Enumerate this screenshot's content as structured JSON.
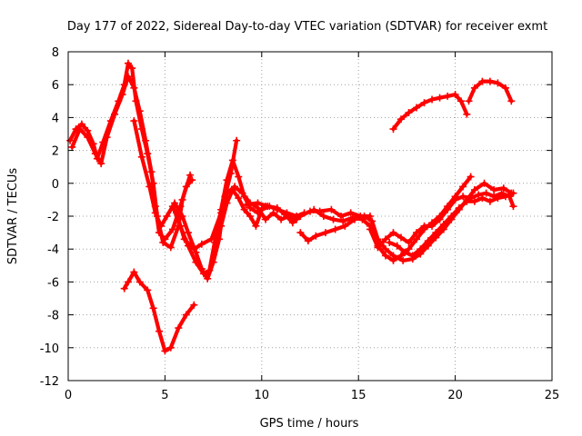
{
  "chart_data": {
    "type": "scatter",
    "title": "Day 177 of 2022, Sidereal Day-to-day VTEC variation (SDTVAR) for receiver exmt",
    "xlabel": "GPS time / hours",
    "ylabel": "SDTVAR / TECUs",
    "xlim": [
      0,
      25
    ],
    "ylim": [
      -12,
      8
    ],
    "xticks": [
      "0",
      "5",
      "10",
      "15",
      "20",
      "25"
    ],
    "yticks": [
      "8",
      "6",
      "4",
      "2",
      "0",
      "-2",
      "-4",
      "-6",
      "-8",
      "-10",
      "-12"
    ],
    "grid": true,
    "marker": "plus",
    "color": "#ff0000",
    "series": [
      {
        "name": "main",
        "points": [
          [
            0.1,
            2.6
          ],
          [
            0.4,
            3.3
          ],
          [
            0.7,
            3.6
          ],
          [
            1.0,
            3.2
          ],
          [
            1.3,
            2.4
          ],
          [
            1.5,
            1.5
          ],
          [
            1.8,
            2.5
          ],
          [
            2.2,
            3.8
          ],
          [
            2.6,
            5.0
          ],
          [
            2.9,
            6.0
          ],
          [
            3.1,
            7.3
          ],
          [
            3.3,
            7.0
          ],
          [
            3.5,
            5.0
          ],
          [
            3.8,
            3.3
          ],
          [
            4.1,
            1.8
          ],
          [
            4.4,
            0.0
          ],
          [
            4.6,
            -2.0
          ],
          [
            4.9,
            -3.6
          ],
          [
            5.3,
            -3.9
          ],
          [
            5.7,
            -2.6
          ],
          [
            5.9,
            -1.0
          ],
          [
            6.3,
            0.5
          ]
        ]
      },
      {
        "name": "main-b",
        "points": [
          [
            0.2,
            2.2
          ],
          [
            0.6,
            3.3
          ],
          [
            1.0,
            2.8
          ],
          [
            1.4,
            1.8
          ],
          [
            1.7,
            1.2
          ],
          [
            2.0,
            2.8
          ],
          [
            2.4,
            4.2
          ],
          [
            2.8,
            5.4
          ],
          [
            3.1,
            6.5
          ],
          [
            3.4,
            5.8
          ],
          [
            3.7,
            4.4
          ],
          [
            4.0,
            2.6
          ],
          [
            4.3,
            0.7
          ],
          [
            4.5,
            -1.4
          ],
          [
            4.7,
            -3.0
          ],
          [
            5.0,
            -3.4
          ],
          [
            5.4,
            -2.8
          ],
          [
            5.8,
            -1.4
          ],
          [
            6.1,
            -0.2
          ],
          [
            6.4,
            0.2
          ]
        ]
      },
      {
        "name": "main-c",
        "points": [
          [
            3.4,
            3.8
          ],
          [
            3.8,
            1.6
          ],
          [
            4.2,
            -0.2
          ],
          [
            4.5,
            -1.8
          ],
          [
            4.8,
            -2.6
          ],
          [
            5.1,
            -2.0
          ],
          [
            5.5,
            -1.2
          ],
          [
            5.9,
            -2.0
          ],
          [
            6.2,
            -3.0
          ],
          [
            6.6,
            -4.2
          ],
          [
            6.9,
            -5.2
          ],
          [
            7.2,
            -5.8
          ],
          [
            7.5,
            -4.8
          ],
          [
            7.8,
            -3.4
          ],
          [
            8.1,
            -0.8
          ],
          [
            8.4,
            0.6
          ],
          [
            8.7,
            2.6
          ]
        ]
      },
      {
        "name": "main-d",
        "points": [
          [
            5.4,
            -1.4
          ],
          [
            5.8,
            -2.6
          ],
          [
            6.2,
            -3.8
          ],
          [
            6.6,
            -4.8
          ],
          [
            7.0,
            -5.5
          ],
          [
            7.3,
            -5.3
          ],
          [
            7.6,
            -3.4
          ],
          [
            7.9,
            -1.6
          ],
          [
            8.2,
            0.2
          ],
          [
            8.5,
            1.4
          ],
          [
            8.8,
            0.4
          ],
          [
            9.1,
            -0.8
          ],
          [
            9.4,
            -1.5
          ],
          [
            9.8,
            -1.8
          ],
          [
            10.2,
            -1.4
          ]
        ]
      },
      {
        "name": "main-e",
        "points": [
          [
            5.6,
            -1.8
          ],
          [
            6.0,
            -3.4
          ],
          [
            6.5,
            -4.0
          ],
          [
            6.9,
            -3.7
          ],
          [
            7.4,
            -3.4
          ],
          [
            7.9,
            -1.8
          ],
          [
            8.2,
            -0.6
          ],
          [
            8.6,
            -0.2
          ],
          [
            9.0,
            -0.6
          ],
          [
            9.4,
            -1.2
          ],
          [
            9.8,
            -1.5
          ],
          [
            10.2,
            -2.2
          ],
          [
            10.6,
            -1.8
          ],
          [
            11.0,
            -2.2
          ],
          [
            11.4,
            -2.0
          ],
          [
            11.8,
            -2.2
          ]
        ]
      },
      {
        "name": "main-f",
        "points": [
          [
            7.6,
            -3.6
          ],
          [
            7.9,
            -2.6
          ],
          [
            8.2,
            -1.2
          ],
          [
            8.5,
            -0.4
          ],
          [
            8.8,
            -0.9
          ],
          [
            9.1,
            -1.6
          ],
          [
            9.4,
            -2.0
          ],
          [
            9.7,
            -2.6
          ],
          [
            10.0,
            -1.6
          ],
          [
            10.4,
            -1.4
          ],
          [
            10.8,
            -1.6
          ],
          [
            11.3,
            -1.8
          ],
          [
            11.8,
            -2.0
          ],
          [
            12.2,
            -1.8
          ]
        ]
      },
      {
        "name": "mid-a",
        "points": [
          [
            9.2,
            -1.3
          ],
          [
            9.8,
            -1.2
          ],
          [
            10.3,
            -1.4
          ],
          [
            10.8,
            -1.5
          ],
          [
            11.2,
            -1.9
          ],
          [
            11.6,
            -2.4
          ],
          [
            12.0,
            -2.0
          ],
          [
            12.5,
            -1.7
          ],
          [
            13.0,
            -1.7
          ],
          [
            13.6,
            -1.6
          ],
          [
            14.1,
            -2.0
          ],
          [
            14.6,
            -1.8
          ],
          [
            15.1,
            -2.0
          ],
          [
            15.6,
            -2.0
          ]
        ]
      },
      {
        "name": "mid-b",
        "points": [
          [
            12.0,
            -3.0
          ],
          [
            12.4,
            -3.5
          ],
          [
            12.8,
            -3.2
          ],
          [
            13.3,
            -3.0
          ],
          [
            13.8,
            -2.8
          ],
          [
            14.3,
            -2.6
          ],
          [
            14.8,
            -2.2
          ],
          [
            15.3,
            -2.0
          ],
          [
            15.7,
            -2.3
          ],
          [
            16.0,
            -3.4
          ],
          [
            16.4,
            -4.0
          ],
          [
            16.8,
            -4.4
          ],
          [
            17.3,
            -4.7
          ],
          [
            17.8,
            -4.6
          ],
          [
            18.2,
            -4.3
          ],
          [
            18.6,
            -3.8
          ],
          [
            19.0,
            -3.3
          ],
          [
            19.4,
            -2.8
          ],
          [
            19.8,
            -2.2
          ],
          [
            20.2,
            -1.6
          ],
          [
            20.6,
            -1.0
          ],
          [
            21.0,
            -0.4
          ],
          [
            21.5,
            0.0
          ],
          [
            22.0,
            -0.4
          ],
          [
            22.5,
            -0.3
          ],
          [
            22.9,
            -0.6
          ]
        ]
      },
      {
        "name": "mid-c",
        "points": [
          [
            12.7,
            -1.6
          ],
          [
            13.2,
            -2.0
          ],
          [
            13.7,
            -2.2
          ],
          [
            14.2,
            -2.3
          ],
          [
            14.7,
            -2.1
          ],
          [
            15.2,
            -2.2
          ],
          [
            15.6,
            -2.6
          ],
          [
            16.0,
            -3.8
          ],
          [
            16.4,
            -4.4
          ],
          [
            16.8,
            -4.7
          ],
          [
            17.2,
            -4.4
          ],
          [
            17.6,
            -4.0
          ],
          [
            18.0,
            -3.4
          ],
          [
            18.4,
            -2.8
          ],
          [
            18.8,
            -2.4
          ],
          [
            19.2,
            -2.0
          ],
          [
            19.6,
            -1.4
          ],
          [
            20.0,
            -0.8
          ],
          [
            20.4,
            -0.2
          ],
          [
            20.8,
            0.4
          ]
        ]
      },
      {
        "name": "mid-d",
        "points": [
          [
            15.6,
            -2.8
          ],
          [
            16.0,
            -3.9
          ],
          [
            16.4,
            -3.4
          ],
          [
            16.8,
            -3.0
          ],
          [
            17.2,
            -3.3
          ],
          [
            17.6,
            -3.6
          ],
          [
            18.0,
            -3.0
          ],
          [
            18.4,
            -2.6
          ],
          [
            18.8,
            -2.6
          ],
          [
            19.2,
            -2.2
          ],
          [
            19.6,
            -1.6
          ],
          [
            20.0,
            -1.0
          ],
          [
            20.4,
            -0.8
          ],
          [
            20.8,
            -0.9
          ],
          [
            21.2,
            -0.7
          ],
          [
            21.6,
            -0.6
          ],
          [
            22.0,
            -0.8
          ],
          [
            22.4,
            -0.6
          ],
          [
            22.8,
            -0.8
          ],
          [
            23.0,
            -1.4
          ]
        ]
      },
      {
        "name": "mid-e",
        "points": [
          [
            16.6,
            -3.6
          ],
          [
            17.0,
            -3.8
          ],
          [
            17.4,
            -4.2
          ],
          [
            17.8,
            -4.4
          ],
          [
            18.2,
            -4.0
          ],
          [
            18.6,
            -3.5
          ],
          [
            19.0,
            -3.0
          ],
          [
            19.4,
            -2.5
          ],
          [
            19.8,
            -2.0
          ],
          [
            20.2,
            -1.5
          ],
          [
            20.6,
            -1.1
          ],
          [
            21.0,
            -1.1
          ],
          [
            21.4,
            -0.9
          ],
          [
            21.8,
            -1.1
          ],
          [
            22.2,
            -0.9
          ],
          [
            22.6,
            -0.8
          ],
          [
            23.0,
            -0.6
          ]
        ]
      },
      {
        "name": "late-a",
        "points": [
          [
            16.8,
            3.3
          ],
          [
            17.2,
            3.9
          ],
          [
            17.6,
            4.3
          ],
          [
            18.0,
            4.6
          ],
          [
            18.4,
            4.9
          ],
          [
            18.8,
            5.1
          ],
          [
            19.2,
            5.2
          ],
          [
            19.6,
            5.3
          ],
          [
            20.0,
            5.4
          ],
          [
            20.3,
            5.0
          ],
          [
            20.6,
            4.2
          ]
        ]
      },
      {
        "name": "late-b",
        "points": [
          [
            20.7,
            5.0
          ],
          [
            21.0,
            5.8
          ],
          [
            21.4,
            6.2
          ],
          [
            21.8,
            6.2
          ],
          [
            22.2,
            6.1
          ],
          [
            22.6,
            5.8
          ],
          [
            22.9,
            5.0
          ]
        ]
      },
      {
        "name": "low",
        "points": [
          [
            2.9,
            -6.4
          ],
          [
            3.1,
            -6.0
          ],
          [
            3.4,
            -5.4
          ],
          [
            3.7,
            -6.0
          ],
          [
            4.1,
            -6.5
          ],
          [
            4.4,
            -7.6
          ],
          [
            4.7,
            -9.0
          ],
          [
            5.0,
            -10.2
          ],
          [
            5.3,
            -10.0
          ],
          [
            5.7,
            -8.8
          ],
          [
            6.1,
            -8.0
          ],
          [
            6.5,
            -7.4
          ]
        ]
      }
    ]
  }
}
